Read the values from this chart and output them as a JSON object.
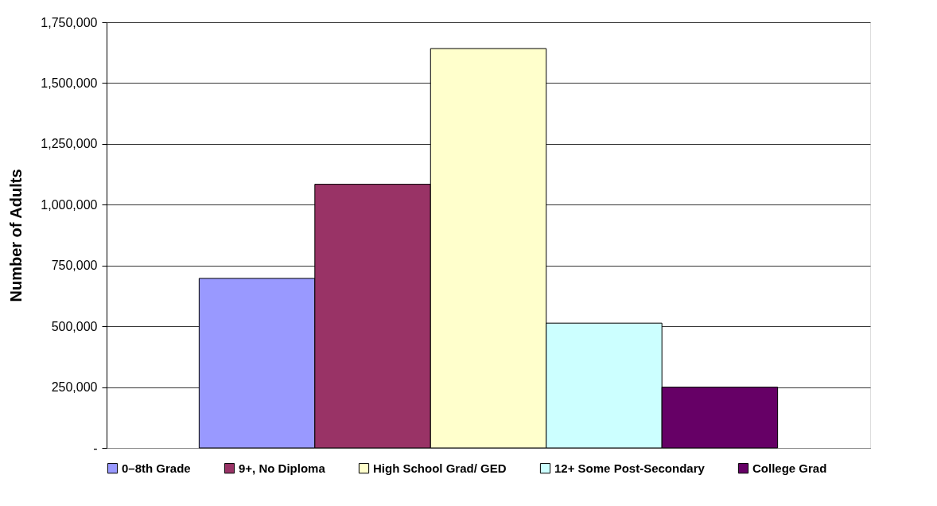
{
  "chart_data": {
    "type": "bar",
    "ylabel": "Number of Adults",
    "categories": [
      null
    ],
    "series": [
      {
        "name": "0–8th Grade",
        "color": "#9999ff",
        "values": [
          697000
        ]
      },
      {
        "name": "9+, No Diploma",
        "color": "#993366",
        "values": [
          1084000
        ]
      },
      {
        "name": "High School Grad/ GED",
        "color": "#ffffcc",
        "values": [
          1642000
        ]
      },
      {
        "name": "12+ Some Post-Secondary",
        "color": "#ccffff",
        "values": [
          513000
        ]
      },
      {
        "name": "College Grad",
        "color": "#660066",
        "values": [
          250000
        ]
      }
    ],
    "ylim": [
      0,
      1750000
    ],
    "yticks": [
      {
        "value": 0,
        "label": "-"
      },
      {
        "value": 250000,
        "label": "250,000"
      },
      {
        "value": 500000,
        "label": "500,000"
      },
      {
        "value": 750000,
        "label": "750,000"
      },
      {
        "value": 1000000,
        "label": "1,000,000"
      },
      {
        "value": 1250000,
        "label": "1,250,000"
      },
      {
        "value": 1500000,
        "label": "1,500,000"
      },
      {
        "value": 1750000,
        "label": "1,750,000"
      }
    ],
    "grid": "y",
    "legend": "bottom",
    "tick_labels": "y"
  }
}
